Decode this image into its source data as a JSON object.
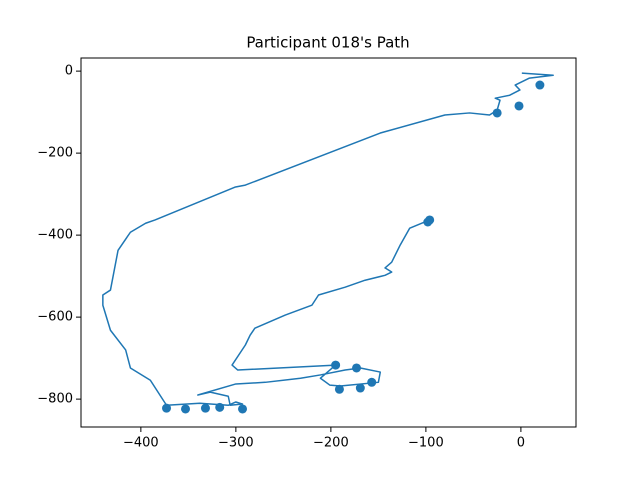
{
  "chart_data": {
    "type": "line",
    "title": "Participant 018's Path",
    "xlim": [
      -463,
      58
    ],
    "ylim": [
      -868,
      32
    ],
    "xticks": [
      {
        "value": -400,
        "label": "−400"
      },
      {
        "value": -300,
        "label": "−300"
      },
      {
        "value": -200,
        "label": "−200"
      },
      {
        "value": -100,
        "label": "−100"
      },
      0
    ],
    "yticks": [
      0,
      {
        "value": -200,
        "label": "−200"
      },
      {
        "value": -400,
        "label": "−400"
      },
      {
        "value": -600,
        "label": "−600"
      },
      {
        "value": -800,
        "label": "−800"
      }
    ],
    "grid": false,
    "series": [
      {
        "mode": "line",
        "color": "#1f77b4",
        "x": [
          1,
          34,
          9,
          -6,
          -1,
          -12,
          -27,
          -22,
          -25,
          -33,
          -54,
          -80,
          -148,
          -290,
          -301,
          -385,
          -395,
          -411,
          -424,
          -432,
          -440,
          -440,
          -432,
          -416,
          -411,
          -390,
          -373,
          -338,
          -308,
          -300,
          -293,
          -306,
          -308,
          -327,
          -340,
          -300,
          -269,
          -232,
          -211,
          -185,
          -169,
          -148,
          -150,
          -190,
          -201,
          -211,
          -195,
          -298,
          -304,
          -290,
          -285,
          -280,
          -248,
          -220,
          -213,
          -185,
          -164,
          -143,
          -136,
          -143,
          -136,
          -127,
          -117,
          -96
        ],
        "values": [
          -5,
          -10,
          -17,
          -34,
          -46,
          -59,
          -66,
          -71,
          -95,
          -107,
          -102,
          -107,
          -151,
          -278,
          -283,
          -363,
          -371,
          -393,
          -437,
          -534,
          -546,
          -571,
          -632,
          -680,
          -724,
          -754,
          -815,
          -810,
          -815,
          -807,
          -812,
          -815,
          -793,
          -783,
          -790,
          -763,
          -759,
          -749,
          -741,
          -729,
          -724,
          -734,
          -759,
          -768,
          -766,
          -749,
          -717,
          -729,
          -717,
          -668,
          -644,
          -627,
          -595,
          -571,
          -546,
          -527,
          -510,
          -498,
          -490,
          -480,
          -466,
          -424,
          -383,
          -363
        ]
      },
      {
        "mode": "scatter",
        "color": "#1f77b4",
        "x": [
          20,
          -2,
          -25,
          -96,
          -98,
          -373,
          -353,
          -332,
          -317,
          -293,
          -195,
          -173,
          -191,
          -169,
          -157
        ],
        "values": [
          -34,
          -85,
          -102,
          -363,
          -368,
          -822,
          -824,
          -822,
          -820,
          -824,
          -717,
          -724,
          -776,
          -773,
          -759
        ]
      }
    ]
  }
}
